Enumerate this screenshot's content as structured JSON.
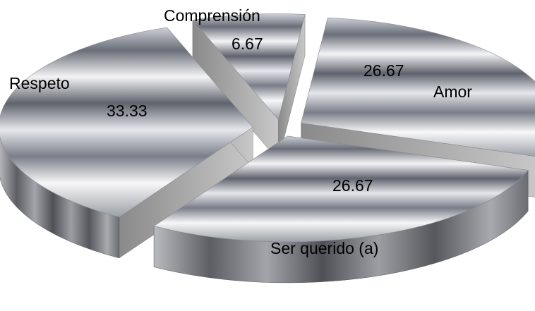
{
  "chart_data": {
    "type": "pie",
    "style": "3d-exploded",
    "categories": [
      "Amor",
      "Ser querido (a)",
      "Respeto",
      "Comprensión"
    ],
    "values": [
      26.67,
      26.67,
      33.33,
      6.67
    ],
    "value_labels": [
      "26.67",
      "26.67",
      "33.33",
      "6.67"
    ],
    "title": "",
    "legend": "none",
    "colors": {
      "top_light": "#f2f2f4",
      "top_dark": "#5a5d64",
      "side": "#6e7077",
      "cut_face": "#d0d0d0"
    }
  }
}
